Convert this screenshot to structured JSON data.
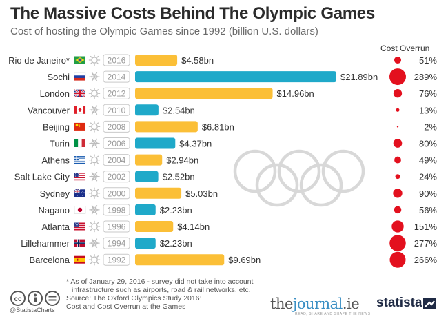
{
  "header": {
    "title": "The Massive Costs Behind The Olympic Games",
    "subtitle": "Cost of hosting the Olympic Games since 1992 (billion U.S. dollars)"
  },
  "chart_data": {
    "type": "bar",
    "orientation": "horizontal",
    "title": "The Massive Costs Behind The Olympic Games",
    "subtitle": "Cost of hosting the Olympic Games since 1992 (billion U.S. dollars)",
    "overrun_header": "Cost Overrun",
    "categories": [
      "Rio de Janeiro*",
      "Sochi",
      "London",
      "Vancouver",
      "Beijing",
      "Turin",
      "Athens",
      "Salt Lake City",
      "Sydney",
      "Nagano",
      "Atlanta",
      "Lillehammer",
      "Barcelona"
    ],
    "years": [
      "2016",
      "2014",
      "2012",
      "2010",
      "2008",
      "2006",
      "2004",
      "2002",
      "2000",
      "1998",
      "1996",
      "1994",
      "1992"
    ],
    "season": [
      "summer",
      "winter",
      "summer",
      "winter",
      "summer",
      "winter",
      "summer",
      "winter",
      "summer",
      "winter",
      "summer",
      "winter",
      "summer"
    ],
    "flags": [
      "brazil-flag",
      "russia-flag",
      "uk-flag",
      "canada-flag",
      "china-flag",
      "italy-flag",
      "greece-flag",
      "usa-flag",
      "australia-flag",
      "japan-flag",
      "usa-flag",
      "norway-flag",
      "spain-flag"
    ],
    "values": [
      4.58,
      21.89,
      14.96,
      2.54,
      6.81,
      4.37,
      2.94,
      2.52,
      5.03,
      2.23,
      4.14,
      2.23,
      9.69
    ],
    "value_labels": [
      "$4.58bn",
      "$21.89bn",
      "$14.96bn",
      "$2.54bn",
      "$6.81bn",
      "$4.37bn",
      "$2.94bn",
      "$2.52bn",
      "$5.03bn",
      "$2.23bn",
      "$4.14bn",
      "$2.23bn",
      "$9.69bn"
    ],
    "overrun": [
      51,
      289,
      76,
      13,
      2,
      80,
      49,
      24,
      90,
      56,
      151,
      277,
      266
    ],
    "overrun_labels": [
      "51%",
      "289%",
      "76%",
      "13%",
      "2%",
      "80%",
      "49%",
      "24%",
      "90%",
      "56%",
      "151%",
      "277%",
      "266%"
    ],
    "colors": {
      "summer": "#fbbf37",
      "winter": "#1fa9c9",
      "overrun": "#e3101e",
      "rings": "#d8d8d8"
    }
  },
  "footer": {
    "note_line1": "* As of January 29, 2016 - survey did not take into account",
    "note_line2": "infrastructure such as airports, road & rail networks, etc.",
    "source_line1": "Source: The Oxford Olympics Study 2016:",
    "source_line2": "Cost and Cost Overrun at the Games",
    "handle": "@StatistaCharts",
    "journal_the": "the",
    "journal_name": "journal",
    "journal_ie": ".ie",
    "journal_tag": "READ, SHARE AND SHAPE THE NEWS",
    "statista": "statista"
  }
}
